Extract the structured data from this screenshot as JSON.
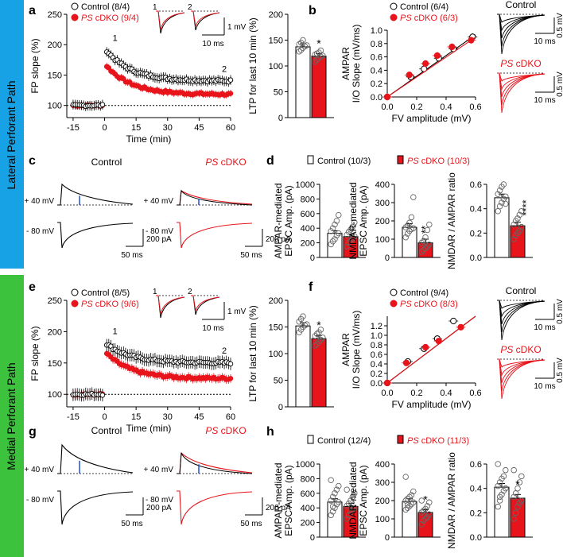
{
  "side_labels": {
    "lateral": "Lateral Perforant Path",
    "medial": "Medial Perforant Path"
  },
  "colors": {
    "control": "#000000",
    "ps": "#e8141b",
    "blue_bar": "#17a2e6",
    "green_bar": "#3cc23c",
    "arrow": "#1f4fd8"
  },
  "panel_letters": {
    "a": "a",
    "b": "b",
    "c": "c",
    "d": "d",
    "e": "e",
    "f": "f",
    "g": "g",
    "h": "h"
  },
  "insets": {
    "trace1": "1",
    "trace2": "2",
    "scale_mv": "1 mV",
    "scale_ms": "10 ms"
  },
  "ps_prefix": "PS",
  "chart_data": [
    {
      "id": "a_timecourse",
      "type": "scatter",
      "xlabel": "Time (min)",
      "ylabel": "FP slope (%)",
      "xlim": [
        -18,
        60
      ],
      "ylim": [
        80,
        250
      ],
      "xticks": [
        "-15",
        "0",
        "15",
        "30",
        "45",
        "60"
      ],
      "yticks": [
        "100",
        "150",
        "200",
        "250"
      ],
      "annotations": {
        "p1": "1",
        "p2": "2"
      },
      "series": [
        {
          "name": "Control (8/4)",
          "legend_suffix": "cDKO",
          "baseline": 100,
          "peak": 190,
          "end": 140,
          "error": 8
        },
        {
          "name": "cDKO (9/4)",
          "baseline": 100,
          "peak": 165,
          "end": 118,
          "error": 6
        }
      ]
    },
    {
      "id": "a_bar",
      "type": "bar",
      "ylabel": "LTP for last 10 min (%)",
      "ylim": [
        0,
        200
      ],
      "yticks": [
        "0",
        "50",
        "100",
        "150",
        "200"
      ],
      "categories": [
        "Control",
        "PS cDKO"
      ],
      "values": [
        137,
        119
      ],
      "errors": [
        6,
        5
      ],
      "significance": "*",
      "points": [
        [
          128,
          131,
          135,
          138,
          140,
          142,
          145,
          150
        ],
        [
          108,
          112,
          115,
          118,
          120,
          122,
          124,
          126,
          130
        ]
      ]
    },
    {
      "id": "b_io",
      "type": "scatter",
      "title": "AMPAR",
      "xlabel": "FV amplitude (mV)",
      "ylabel": "I/O Slope (mV/ms)",
      "xlim": [
        0,
        0.6
      ],
      "ylim": [
        0,
        1.0
      ],
      "xticks": [
        "0.0",
        "0.2",
        "0.4",
        "0.6"
      ],
      "yticks": [
        "0.0",
        "0.2",
        "0.4",
        "0.6",
        "0.8",
        "1.0"
      ],
      "series": [
        {
          "name": "Control (6/4)",
          "x": [
            0,
            0.16,
            0.25,
            0.35,
            0.45,
            0.58
          ],
          "y": [
            0,
            0.3,
            0.42,
            0.58,
            0.72,
            0.9
          ]
        },
        {
          "name": "cDKO (6/3)",
          "x": [
            0,
            0.15,
            0.26,
            0.34,
            0.44,
            0.57
          ],
          "y": [
            0,
            0.33,
            0.5,
            0.62,
            0.75,
            0.85
          ]
        }
      ],
      "traces_labels": {
        "control": "Control",
        "ps": "cDKO"
      },
      "scales": {
        "mv": "0.5 mV",
        "ms": "10 ms"
      }
    },
    {
      "id": "c_traces",
      "type": "line",
      "title_control": "Control",
      "title_ps": "cDKO",
      "row_labels": [
        "+ 40 mV",
        "- 80 mV"
      ],
      "scales": {
        "pa": "200 pA",
        "ms": "50 ms"
      }
    },
    {
      "id": "d_bars",
      "type": "bar",
      "legend": [
        "Control (10/3)",
        "cDKO (10/3)"
      ],
      "panels": [
        {
          "ylabel": [
            "AMPAR-mediated",
            "EPSC Amp. (pA)"
          ],
          "ylim": [
            0,
            1000
          ],
          "yticks": [
            "0",
            "200",
            "400",
            "600",
            "800",
            "1000"
          ],
          "values": [
            330,
            285
          ],
          "errors": [
            35,
            30
          ],
          "significance": "",
          "points": [
            [
              180,
              220,
              250,
              300,
              330,
              360,
              400,
              450,
              500,
              580
            ],
            [
              150,
              200,
              230,
              260,
              290,
              310,
              350,
              380,
              420,
              480
            ]
          ]
        },
        {
          "ylabel": [
            "NMDAR-mediated",
            "EPSC Amp. (pA)"
          ],
          "ylim": [
            0,
            400
          ],
          "yticks": [
            "0",
            "100",
            "200",
            "300",
            "400"
          ],
          "values": [
            165,
            80
          ],
          "errors": [
            20,
            20
          ],
          "significance": "**",
          "points": [
            [
              110,
              130,
              145,
              155,
              160,
              165,
              175,
              190,
              220,
              330
            ],
            [
              30,
              40,
              50,
              60,
              70,
              80,
              90,
              110,
              150,
              180
            ]
          ]
        },
        {
          "ylabel": [
            "NMDAR / AMPAR ratio"
          ],
          "ylim": [
            0,
            0.6
          ],
          "yticks": [
            "0.0",
            "0.2",
            "0.4",
            "0.6"
          ],
          "values": [
            0.49,
            0.26
          ],
          "errors": [
            0.03,
            0.03
          ],
          "significance": "****",
          "points": [
            [
              0.38,
              0.42,
              0.45,
              0.48,
              0.5,
              0.52,
              0.55,
              0.58,
              0.6,
              0.44
            ],
            [
              0.15,
              0.18,
              0.2,
              0.22,
              0.25,
              0.27,
              0.3,
              0.32,
              0.35,
              0.38
            ]
          ]
        }
      ]
    },
    {
      "id": "e_timecourse",
      "type": "scatter",
      "xlabel": "Time (min)",
      "ylabel": "FP slope (%)",
      "xlim": [
        -18,
        60
      ],
      "ylim": [
        80,
        250
      ],
      "xticks": [
        "-15",
        "0",
        "15",
        "30",
        "45",
        "60"
      ],
      "yticks": [
        "100",
        "150",
        "200",
        "250"
      ],
      "annotations": {
        "p1": "1",
        "p2": "2"
      },
      "series": [
        {
          "name": "Control (8/5)",
          "baseline": 100,
          "peak": 180,
          "end": 150,
          "error": 10
        },
        {
          "name": "cDKO (9/6)",
          "baseline": 100,
          "peak": 165,
          "end": 125,
          "error": 7
        }
      ]
    },
    {
      "id": "e_bar",
      "type": "bar",
      "ylabel": "LTP for last 10 min (%)",
      "ylim": [
        0,
        200
      ],
      "yticks": [
        "0",
        "50",
        "100",
        "150",
        "200"
      ],
      "categories": [
        "Control",
        "PS cDKO"
      ],
      "values": [
        152,
        128
      ],
      "errors": [
        6,
        6
      ],
      "significance": "*",
      "points": [
        [
          140,
          145,
          150,
          153,
          155,
          160,
          165,
          170
        ],
        [
          115,
          118,
          122,
          126,
          130,
          133,
          137,
          140,
          145
        ]
      ]
    },
    {
      "id": "f_io",
      "type": "scatter",
      "title": "AMPAR",
      "xlabel": "FV amplitude (mV)",
      "ylabel": "I/O Slope (mV/ms)",
      "xlim": [
        0,
        0.6
      ],
      "ylim": [
        0,
        1.4
      ],
      "xticks": [
        "0.0",
        "0.2",
        "0.4",
        "0.6"
      ],
      "yticks": [
        "0.0",
        "0.2",
        "0.4",
        "0.6",
        "0.8",
        "1.0",
        "1.2"
      ],
      "series": [
        {
          "name": "Control (9/4)",
          "x": [
            0,
            0.14,
            0.25,
            0.34,
            0.45
          ],
          "y": [
            0,
            0.45,
            0.72,
            0.93,
            1.3
          ]
        },
        {
          "name": "cDKO (8/3)",
          "x": [
            0,
            0.13,
            0.26,
            0.35,
            0.5
          ],
          "y": [
            0,
            0.42,
            0.75,
            0.88,
            1.17
          ]
        }
      ],
      "traces_labels": {
        "control": "Control",
        "ps": "cDKO"
      },
      "scales": {
        "mv": "0.5 mV",
        "ms": "10 ms"
      }
    },
    {
      "id": "g_traces",
      "type": "line",
      "title_control": "Control",
      "title_ps": "cDKO",
      "row_labels": [
        "+ 40 mV",
        "- 80 mV"
      ],
      "scales": {
        "pa": "200 pA",
        "ms": "50 ms"
      }
    },
    {
      "id": "h_bars",
      "type": "bar",
      "legend": [
        "Control (12/4)",
        "cDKO (11/3)"
      ],
      "panels": [
        {
          "ylabel": [
            "AMPAR-mediated",
            "EPSC Amp. (pA)"
          ],
          "ylim": [
            0,
            1000
          ],
          "yticks": [
            "0",
            "200",
            "400",
            "600",
            "800",
            "1000"
          ],
          "values": [
            480,
            420
          ],
          "errors": [
            45,
            40
          ],
          "significance": "",
          "points": [
            [
              300,
              350,
              400,
              450,
              480,
              500,
              550,
              600,
              650,
              700,
              780,
              420
            ],
            [
              250,
              300,
              350,
              380,
              400,
              430,
              460,
              500,
              550,
              600,
              650
            ]
          ]
        },
        {
          "ylabel": [
            "NMDAR-mediated",
            "EPSC Amp. (pA)"
          ],
          "ylim": [
            0,
            400
          ],
          "yticks": [
            "0",
            "100",
            "200",
            "300",
            "400"
          ],
          "values": [
            195,
            135
          ],
          "errors": [
            15,
            15
          ],
          "significance": "*",
          "points": [
            [
              150,
              160,
              170,
              180,
              190,
              200,
              210,
              220,
              230,
              250,
              330,
              175
            ],
            [
              70,
              90,
              100,
              110,
              125,
              135,
              145,
              155,
              170,
              190,
              200
            ]
          ]
        },
        {
          "ylabel": [
            "NMDAR / AMPAR ratio"
          ],
          "ylim": [
            0,
            0.6
          ],
          "yticks": [
            "0.0",
            "0.2",
            "0.4",
            "0.6"
          ],
          "values": [
            0.41,
            0.32
          ],
          "errors": [
            0.03,
            0.03
          ],
          "significance": "*",
          "points": [
            [
              0.25,
              0.3,
              0.35,
              0.38,
              0.4,
              0.42,
              0.45,
              0.48,
              0.5,
              0.55,
              0.6,
              0.33
            ],
            [
              0.15,
              0.2,
              0.25,
              0.28,
              0.3,
              0.33,
              0.36,
              0.4,
              0.45,
              0.5,
              0.55
            ]
          ]
        }
      ]
    }
  ]
}
